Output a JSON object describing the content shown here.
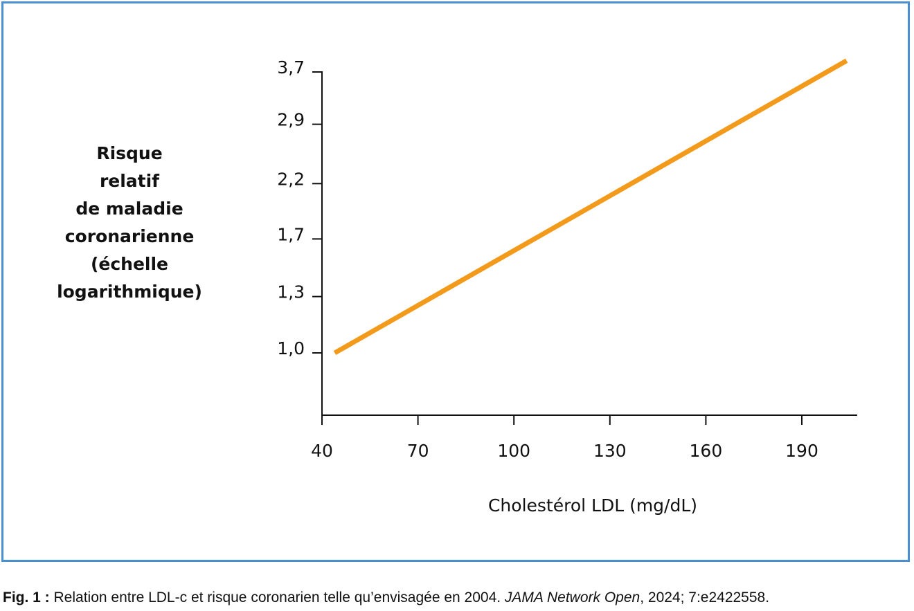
{
  "chart_data": {
    "type": "line",
    "xlabel": "Cholestérol LDL (mg/dL)",
    "ylabel_lines": [
      "Risque",
      "relatif",
      "de maladie",
      "coronarienne",
      "(échelle",
      "logarithmique)"
    ],
    "x_ticks": [
      40,
      70,
      100,
      130,
      160,
      190
    ],
    "y_ticks": [
      {
        "value": 1.0,
        "label": "1,0"
      },
      {
        "value": 1.3,
        "label": "1,3"
      },
      {
        "value": 1.7,
        "label": "1,7"
      },
      {
        "value": 2.2,
        "label": "2,2"
      },
      {
        "value": 2.9,
        "label": "2,9"
      },
      {
        "value": 3.7,
        "label": "3,7"
      }
    ],
    "y_scale": "log",
    "xlim": [
      40,
      206
    ],
    "grid": false,
    "series": [
      {
        "color": "#f29a1c",
        "x": [
          44,
          204
        ],
        "y": [
          1.0,
          3.9
        ]
      }
    ]
  },
  "caption": {
    "label": "Fig. 1 :",
    "text": " Relation entre LDL-c et risque coronarien telle qu’envisagée en 2004. ",
    "journal": "JAMA Network Open",
    "ref": ", 2024; 7:e2422558."
  }
}
